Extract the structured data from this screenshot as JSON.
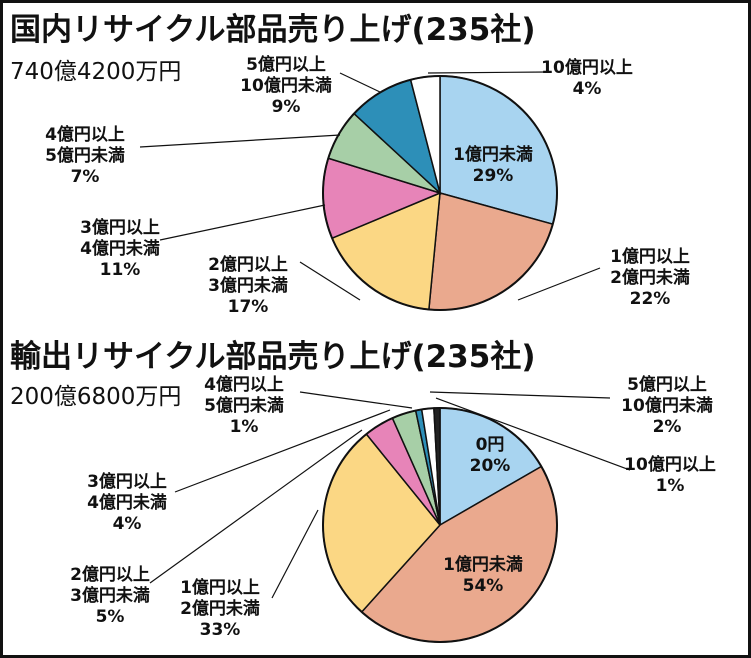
{
  "chart_data": [
    {
      "type": "pie",
      "title": "国内リサイクル部品売り上げ(235社)",
      "subtitle": "740億4200万円",
      "slices": [
        {
          "label": [
            "1億円未満"
          ],
          "value": 29,
          "value_text": "29%",
          "color": "#a8d4f0"
        },
        {
          "label": [
            "1億円以上",
            "2億円未満"
          ],
          "value": 22,
          "value_text": "22%",
          "color": "#eaa98e"
        },
        {
          "label": [
            "2億円以上",
            "3億円未満"
          ],
          "value": 17,
          "value_text": "17%",
          "color": "#fbd784"
        },
        {
          "label": [
            "3億円以上",
            "4億円未満"
          ],
          "value": 11,
          "value_text": "11%",
          "color": "#e784b8"
        },
        {
          "label": [
            "4億円以上",
            "5億円未満"
          ],
          "value": 7,
          "value_text": "7%",
          "color": "#a7cfa7"
        },
        {
          "label": [
            "5億円以上",
            "10億円未満"
          ],
          "value": 9,
          "value_text": "9%",
          "color": "#2d8fb8"
        },
        {
          "label": [
            "10億円以上"
          ],
          "value": 4,
          "value_text": "4%",
          "color": "#ffffff"
        }
      ]
    },
    {
      "type": "pie",
      "title": "輸出リサイクル部品売り上げ(235社)",
      "subtitle": "200億6800万円",
      "slices": [
        {
          "label": [
            "0円"
          ],
          "value": 20,
          "value_text": "20%",
          "color": "#a8d4f0"
        },
        {
          "label": [
            "1億円未満"
          ],
          "value": 54,
          "value_text": "54%",
          "color": "#eaa98e"
        },
        {
          "label": [
            "1億円以上",
            "2億円未満"
          ],
          "value": 33,
          "value_text": "33%",
          "color": "#fbd784"
        },
        {
          "label": [
            "2億円以上",
            "3億円未満"
          ],
          "value": 5,
          "value_text": "5%",
          "color": "#e784b8"
        },
        {
          "label": [
            "3億円以上",
            "4億円未満"
          ],
          "value": 4,
          "value_text": "4%",
          "color": "#a7cfa7"
        },
        {
          "label": [
            "4億円以上",
            "5億円未満"
          ],
          "value": 1,
          "value_text": "1%",
          "color": "#2d8fb8"
        },
        {
          "label": [
            "5億円以上",
            "10億円未満"
          ],
          "value": 2,
          "value_text": "2%",
          "color": "#ffffff"
        },
        {
          "label": [
            "10億円以上"
          ],
          "value": 1,
          "value_text": "1%",
          "color": "#222222"
        }
      ]
    }
  ]
}
